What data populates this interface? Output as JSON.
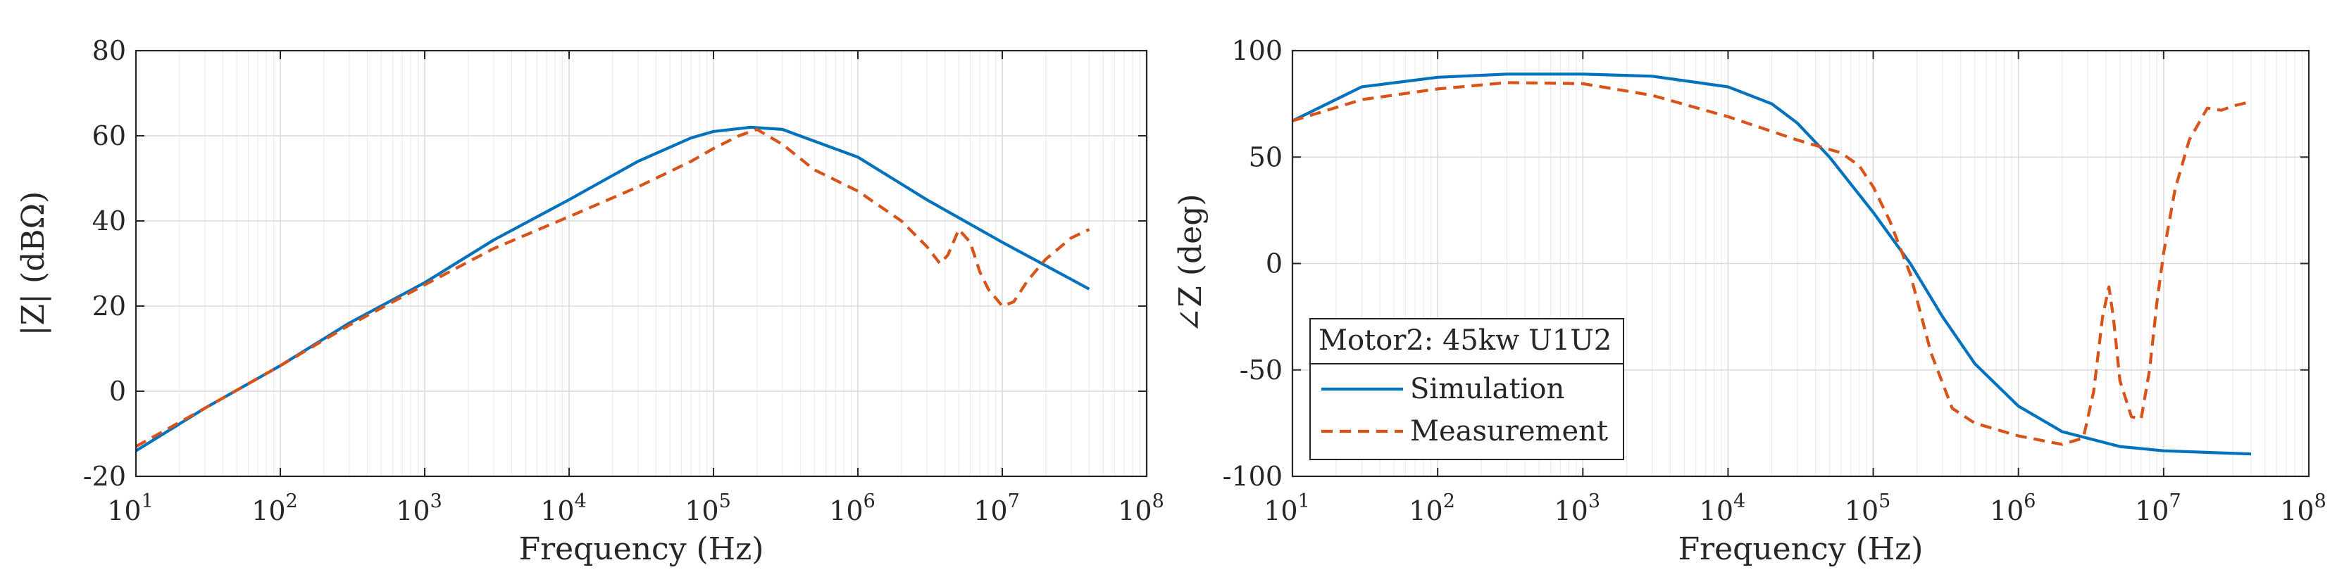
{
  "chart_data": [
    {
      "type": "line",
      "xscale": "log",
      "xlabel": "Frequency (Hz)",
      "ylabel": "|Z| (dBΩ)",
      "xlim": [
        10,
        100000000
      ],
      "ylim": [
        -20,
        80
      ],
      "xtick_labels": [
        "10^1",
        "10^2",
        "10^3",
        "10^4",
        "10^5",
        "10^6",
        "10^7",
        "10^8"
      ],
      "ytick_labels": [
        "-20",
        "0",
        "20",
        "40",
        "60",
        "80"
      ],
      "yticks": [
        -20,
        0,
        20,
        40,
        60,
        80
      ],
      "grid": "major and minor",
      "series": [
        {
          "name": "Simulation",
          "color": "#0072BD",
          "style": "solid",
          "x": [
            10,
            30,
            100,
            300,
            1000,
            3000,
            10000,
            30000,
            70000,
            100000,
            180000,
            300000,
            1000000,
            3000000,
            10000000,
            40000000
          ],
          "y": [
            -14,
            -4,
            6,
            16,
            25.5,
            35.5,
            45,
            54,
            59.5,
            61,
            62,
            61.5,
            55,
            45,
            35,
            24
          ]
        },
        {
          "name": "Measurement",
          "color": "#D95319",
          "style": "dashed",
          "x": [
            10,
            30,
            100,
            300,
            1000,
            3000,
            10000,
            30000,
            70000,
            100000,
            150000,
            200000,
            300000,
            500000,
            1000000,
            2000000,
            3000000,
            3700000,
            4200000,
            5000000,
            6000000,
            7000000,
            8000000,
            10000000,
            12000000,
            15000000,
            20000000,
            30000000,
            40000000
          ],
          "y": [
            -13,
            -4,
            6,
            15.5,
            25,
            33.5,
            41,
            48,
            54,
            57,
            60,
            61.5,
            58,
            52,
            47,
            40,
            34,
            30,
            32,
            38,
            35,
            28,
            24,
            20,
            21,
            26,
            31,
            36,
            38
          ]
        }
      ]
    },
    {
      "type": "line",
      "xscale": "log",
      "xlabel": "Frequency (Hz)",
      "ylabel": "∠Z (deg)",
      "xlim": [
        10,
        100000000
      ],
      "ylim": [
        -100,
        100
      ],
      "xtick_labels": [
        "10^1",
        "10^2",
        "10^3",
        "10^4",
        "10^5",
        "10^6",
        "10^7",
        "10^8"
      ],
      "ytick_labels": [
        "-100",
        "-50",
        "0",
        "50",
        "100"
      ],
      "yticks": [
        -100,
        -50,
        0,
        50,
        100
      ],
      "grid": "major and minor",
      "legend": {
        "title": "Motor2: 45kw U1U2",
        "location": "bottom-left",
        "entries": [
          "Simulation",
          "Measurement"
        ]
      },
      "series": [
        {
          "name": "Simulation",
          "color": "#0072BD",
          "style": "solid",
          "x": [
            10,
            30,
            100,
            300,
            1000,
            3000,
            10000,
            20000,
            30000,
            50000,
            100000,
            180000,
            300000,
            500000,
            1000000,
            2000000,
            5000000,
            10000000,
            40000000
          ],
          "y": [
            67,
            83,
            87.5,
            89,
            89,
            88,
            83,
            75,
            66,
            50,
            24,
            0,
            -25,
            -47,
            -67,
            -79,
            -86,
            -88,
            -89.5
          ]
        },
        {
          "name": "Measurement",
          "color": "#D95319",
          "style": "dashed",
          "x": [
            10,
            30,
            100,
            300,
            1000,
            3000,
            10000,
            30000,
            60000,
            80000,
            100000,
            130000,
            180000,
            250000,
            350000,
            500000,
            1000000,
            2000000,
            2800000,
            3300000,
            3800000,
            4200000,
            4500000,
            5000000,
            6000000,
            7000000,
            8000000,
            9000000,
            10000000,
            12000000,
            15000000,
            20000000,
            25000000,
            30000000,
            40000000
          ],
          "y": [
            67,
            77,
            82,
            85,
            84.5,
            79,
            69,
            58,
            52,
            46,
            36,
            20,
            -5,
            -42,
            -68,
            -75,
            -81,
            -85,
            -82,
            -60,
            -25,
            -11,
            -25,
            -55,
            -72,
            -73,
            -50,
            -18,
            5,
            35,
            58,
            73,
            72,
            74,
            76
          ]
        }
      ]
    }
  ]
}
